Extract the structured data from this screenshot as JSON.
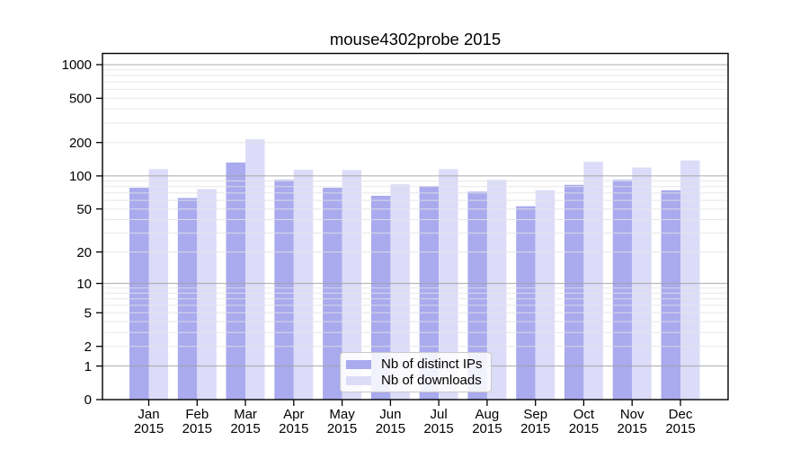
{
  "chart_data": {
    "type": "bar",
    "title": "mouse4302probe 2015",
    "xlabel": "",
    "ylabel": "",
    "y_scale": "log-like: position = log10(value+1), zero shown at axis bottom",
    "ylim": [
      0,
      1300
    ],
    "y_ticks": [
      0,
      1,
      2,
      5,
      10,
      20,
      50,
      100,
      200,
      500,
      1000
    ],
    "grid": {
      "major_at": [
        1,
        10,
        100,
        1000
      ],
      "minor_rule": "2-9, 20-90, 200-900 within each decade",
      "grid_on": true
    },
    "categories": [
      "Jan",
      "Feb",
      "Mar",
      "Apr",
      "May",
      "Jun",
      "Jul",
      "Aug",
      "Sep",
      "Oct",
      "Nov",
      "Dec"
    ],
    "category_year_label": "2015",
    "series": [
      {
        "name": "Nb of distinct IPs",
        "color": "#aaaaee",
        "values": [
          78,
          63,
          132,
          92,
          78,
          66,
          81,
          72,
          53,
          83,
          92,
          74
        ]
      },
      {
        "name": "Nb of downloads",
        "color": "#dcdcf9",
        "values": [
          115,
          76,
          214,
          114,
          113,
          84,
          115,
          92,
          74,
          134,
          119,
          138
        ]
      }
    ],
    "legend_position": "lower center"
  },
  "legend": {
    "items": [
      {
        "label": "Nb of distinct IPs",
        "color": "#aaaaee"
      },
      {
        "label": "Nb of downloads",
        "color": "#dcdcf9"
      }
    ]
  },
  "colors": {
    "background": "#ffffff",
    "spine": "#000000",
    "grid_major": "#aeaeae",
    "grid_minor": "#e7e7e7",
    "tick_text": "#000000"
  }
}
